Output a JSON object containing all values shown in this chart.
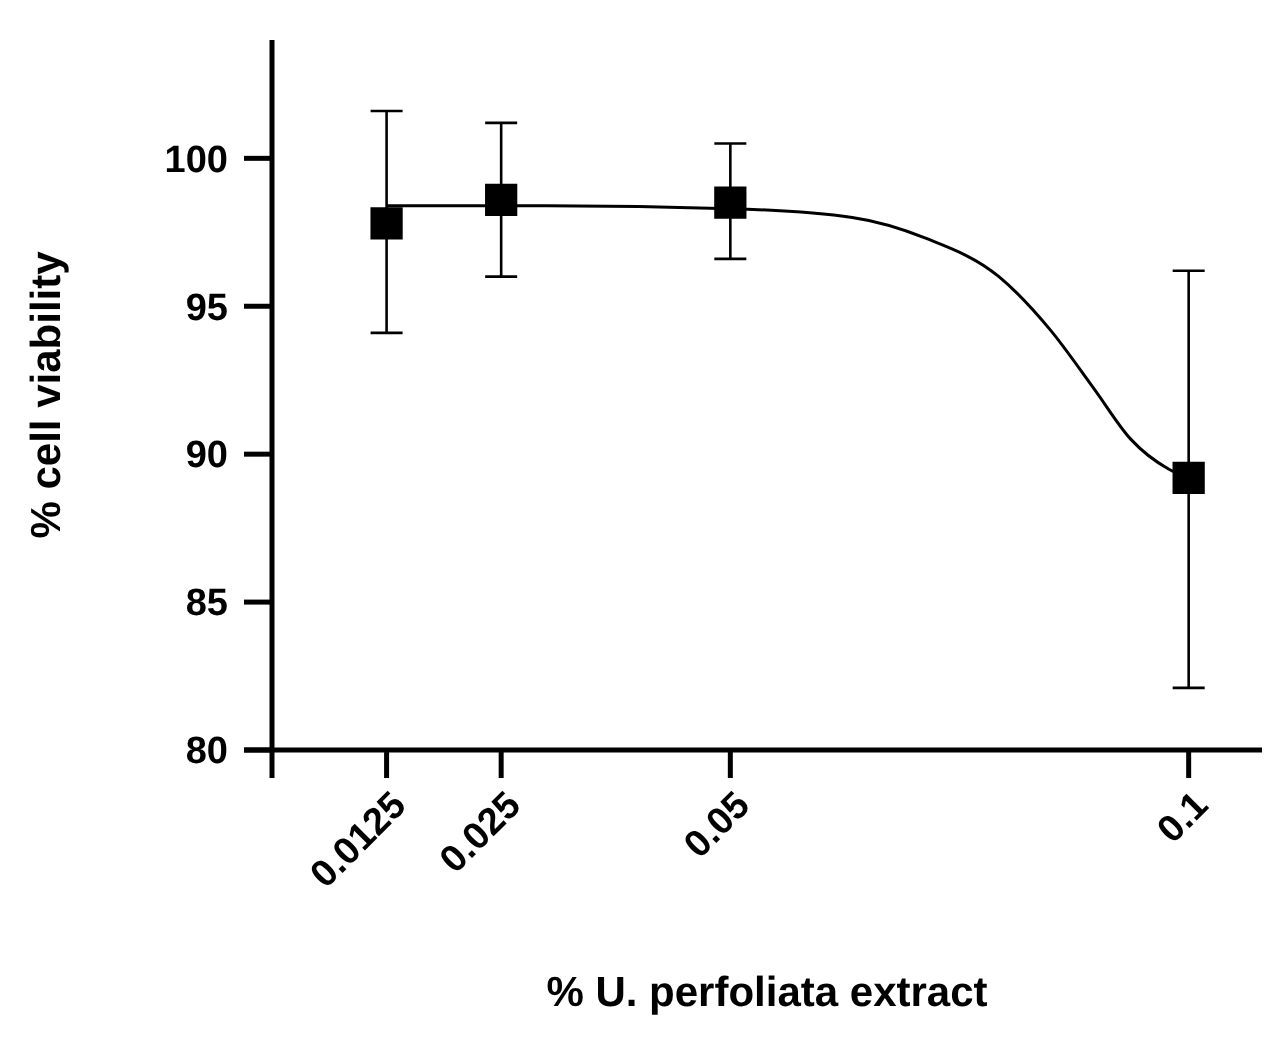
{
  "chart_data": {
    "type": "scatter",
    "xlabel": "% U. perfoliata extract",
    "ylabel": "% cell viability",
    "xlim": [
      0,
      0.108
    ],
    "xticks": [
      {
        "value": 0,
        "label": null
      },
      0.0125,
      0.025,
      0.05,
      0.1
    ],
    "ylim": [
      80,
      104
    ],
    "yticks": [
      80,
      85,
      90,
      95,
      100
    ],
    "grid": false,
    "series": [
      {
        "type": "line",
        "color": "#000000",
        "marker": "none",
        "line_style": "solid",
        "x": [
          0.0125,
          0.03,
          0.05,
          0.0633,
          0.0713,
          0.0793,
          0.0849,
          0.0897,
          0.0937,
          0.0978,
          0.1
        ],
        "values": [
          98.4,
          98.4,
          98.3,
          98.0,
          97.3,
          96.0,
          94.2,
          92.2,
          90.5,
          89.5,
          89.2
        ]
      },
      {
        "color": "#000000",
        "marker": "square",
        "x": [
          0.0125,
          0.025,
          0.05,
          0.1
        ],
        "values": [
          97.8,
          98.6,
          98.5,
          89.2
        ],
        "errors": [
          [
            94.1,
            101.6
          ],
          [
            96.0,
            101.2
          ],
          [
            96.6,
            100.5
          ],
          [
            82.1,
            96.2
          ]
        ]
      }
    ]
  }
}
